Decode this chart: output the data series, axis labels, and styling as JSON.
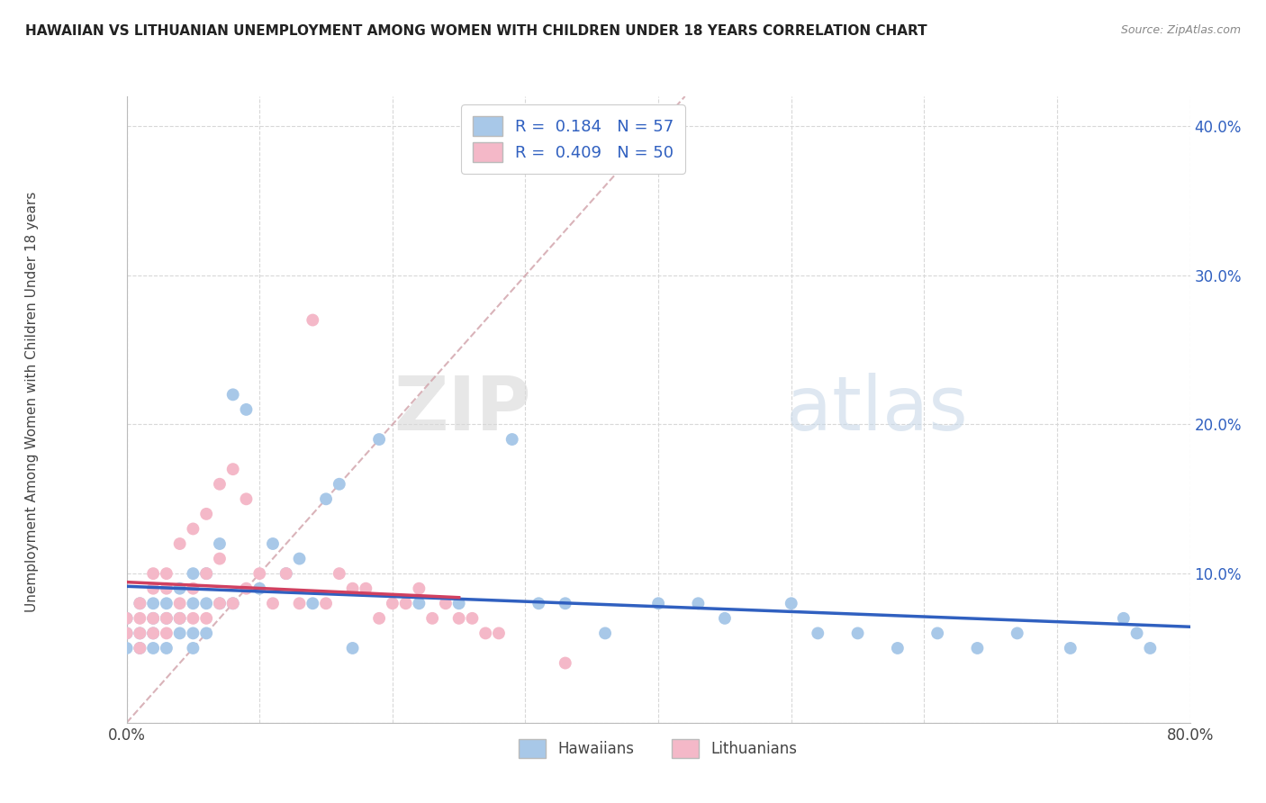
{
  "title": "HAWAIIAN VS LITHUANIAN UNEMPLOYMENT AMONG WOMEN WITH CHILDREN UNDER 18 YEARS CORRELATION CHART",
  "source": "Source: ZipAtlas.com",
  "ylabel": "Unemployment Among Women with Children Under 18 years",
  "xlim": [
    0.0,
    0.8
  ],
  "ylim": [
    0.0,
    0.42
  ],
  "x_ticks": [
    0.0,
    0.1,
    0.2,
    0.3,
    0.4,
    0.5,
    0.6,
    0.7,
    0.8
  ],
  "y_ticks": [
    0.0,
    0.1,
    0.2,
    0.3,
    0.4
  ],
  "hawaiians_color": "#a8c8e8",
  "lithuanians_color": "#f4b8c8",
  "hawaiians_line_color": "#3060c0",
  "lithuanians_line_color": "#d04060",
  "diagonal_color": "#d0a0a8",
  "legend_label_h": "R =  0.184   N = 57",
  "legend_label_l": "R =  0.409   N = 50",
  "bottom_label_h": "Hawaiians",
  "bottom_label_l": "Lithuanians",
  "hawaiians_scatter_x": [
    0.0,
    0.0,
    0.0,
    0.01,
    0.01,
    0.01,
    0.02,
    0.02,
    0.02,
    0.02,
    0.03,
    0.03,
    0.03,
    0.04,
    0.04,
    0.04,
    0.05,
    0.05,
    0.05,
    0.05,
    0.06,
    0.06,
    0.06,
    0.07,
    0.07,
    0.08,
    0.08,
    0.09,
    0.1,
    0.11,
    0.12,
    0.13,
    0.14,
    0.15,
    0.16,
    0.17,
    0.19,
    0.22,
    0.25,
    0.29,
    0.31,
    0.33,
    0.36,
    0.4,
    0.43,
    0.45,
    0.5,
    0.52,
    0.55,
    0.58,
    0.61,
    0.64,
    0.67,
    0.71,
    0.75,
    0.76,
    0.77
  ],
  "hawaiians_scatter_y": [
    0.06,
    0.07,
    0.05,
    0.08,
    0.06,
    0.05,
    0.07,
    0.08,
    0.06,
    0.05,
    0.08,
    0.07,
    0.05,
    0.09,
    0.07,
    0.06,
    0.1,
    0.08,
    0.06,
    0.05,
    0.1,
    0.08,
    0.06,
    0.12,
    0.08,
    0.22,
    0.08,
    0.21,
    0.09,
    0.12,
    0.1,
    0.11,
    0.08,
    0.15,
    0.16,
    0.05,
    0.19,
    0.08,
    0.08,
    0.19,
    0.08,
    0.08,
    0.06,
    0.08,
    0.08,
    0.07,
    0.08,
    0.06,
    0.06,
    0.05,
    0.06,
    0.05,
    0.06,
    0.05,
    0.07,
    0.06,
    0.05
  ],
  "lithuanians_scatter_x": [
    0.0,
    0.0,
    0.01,
    0.01,
    0.01,
    0.01,
    0.02,
    0.02,
    0.02,
    0.02,
    0.03,
    0.03,
    0.03,
    0.03,
    0.04,
    0.04,
    0.04,
    0.05,
    0.05,
    0.05,
    0.06,
    0.06,
    0.06,
    0.07,
    0.07,
    0.07,
    0.08,
    0.08,
    0.09,
    0.09,
    0.1,
    0.11,
    0.12,
    0.13,
    0.14,
    0.15,
    0.16,
    0.17,
    0.18,
    0.19,
    0.2,
    0.21,
    0.22,
    0.23,
    0.24,
    0.25,
    0.26,
    0.27,
    0.28,
    0.33
  ],
  "lithuanians_scatter_y": [
    0.06,
    0.07,
    0.08,
    0.07,
    0.06,
    0.05,
    0.09,
    0.1,
    0.07,
    0.06,
    0.1,
    0.09,
    0.07,
    0.06,
    0.12,
    0.08,
    0.07,
    0.13,
    0.09,
    0.07,
    0.14,
    0.1,
    0.07,
    0.16,
    0.11,
    0.08,
    0.17,
    0.08,
    0.15,
    0.09,
    0.1,
    0.08,
    0.1,
    0.08,
    0.27,
    0.08,
    0.1,
    0.09,
    0.09,
    0.07,
    0.08,
    0.08,
    0.09,
    0.07,
    0.08,
    0.07,
    0.07,
    0.06,
    0.06,
    0.04
  ]
}
